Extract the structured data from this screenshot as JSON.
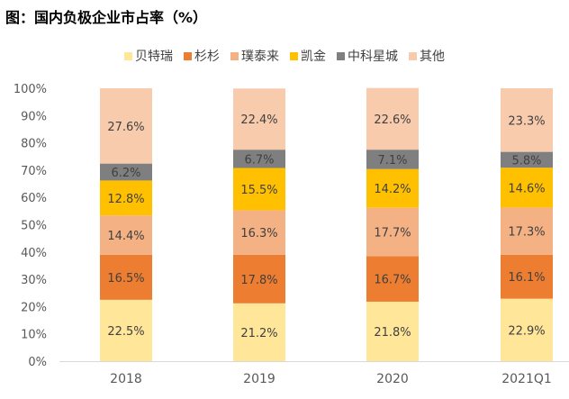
{
  "title": "图：国内负极企业市占率（%）",
  "chart_data": {
    "type": "bar",
    "stacked": true,
    "categories": [
      "2018",
      "2019",
      "2020",
      "2021Q1"
    ],
    "y_ticks": [
      "0%",
      "10%",
      "20%",
      "30%",
      "40%",
      "50%",
      "60%",
      "70%",
      "80%",
      "90%",
      "100%"
    ],
    "ylim": [
      0,
      100
    ],
    "legend_position": "top",
    "series": [
      {
        "name": "贝特瑞",
        "color": "#FFE699",
        "values": [
          22.5,
          21.2,
          21.8,
          22.9
        ],
        "labels": [
          "22.5%",
          "21.2%",
          "21.8%",
          "22.9%"
        ]
      },
      {
        "name": "杉杉",
        "color": "#ED7D31",
        "values": [
          16.5,
          17.8,
          16.7,
          16.1
        ],
        "labels": [
          "16.5%",
          "17.8%",
          "16.7%",
          "16.1%"
        ]
      },
      {
        "name": "璞泰来",
        "color": "#F4B183",
        "values": [
          14.4,
          16.3,
          17.7,
          17.3
        ],
        "labels": [
          "14.4%",
          "16.3%",
          "17.7%",
          "17.3%"
        ]
      },
      {
        "name": "凯金",
        "color": "#FFC000",
        "values": [
          12.8,
          15.5,
          14.2,
          14.6
        ],
        "labels": [
          "12.8%",
          "15.5%",
          "14.2%",
          "14.6%"
        ]
      },
      {
        "name": "中科星城",
        "color": "#7F7F7F",
        "values": [
          6.2,
          6.7,
          7.1,
          5.8
        ],
        "labels": [
          "6.2%",
          "6.7%",
          "7.1%",
          "5.8%"
        ]
      },
      {
        "name": "其他",
        "color": "#F8CBAD",
        "values": [
          27.6,
          22.4,
          22.6,
          23.3
        ],
        "labels": [
          "27.6%",
          "22.4%",
          "22.6%",
          "23.3%"
        ]
      }
    ]
  }
}
